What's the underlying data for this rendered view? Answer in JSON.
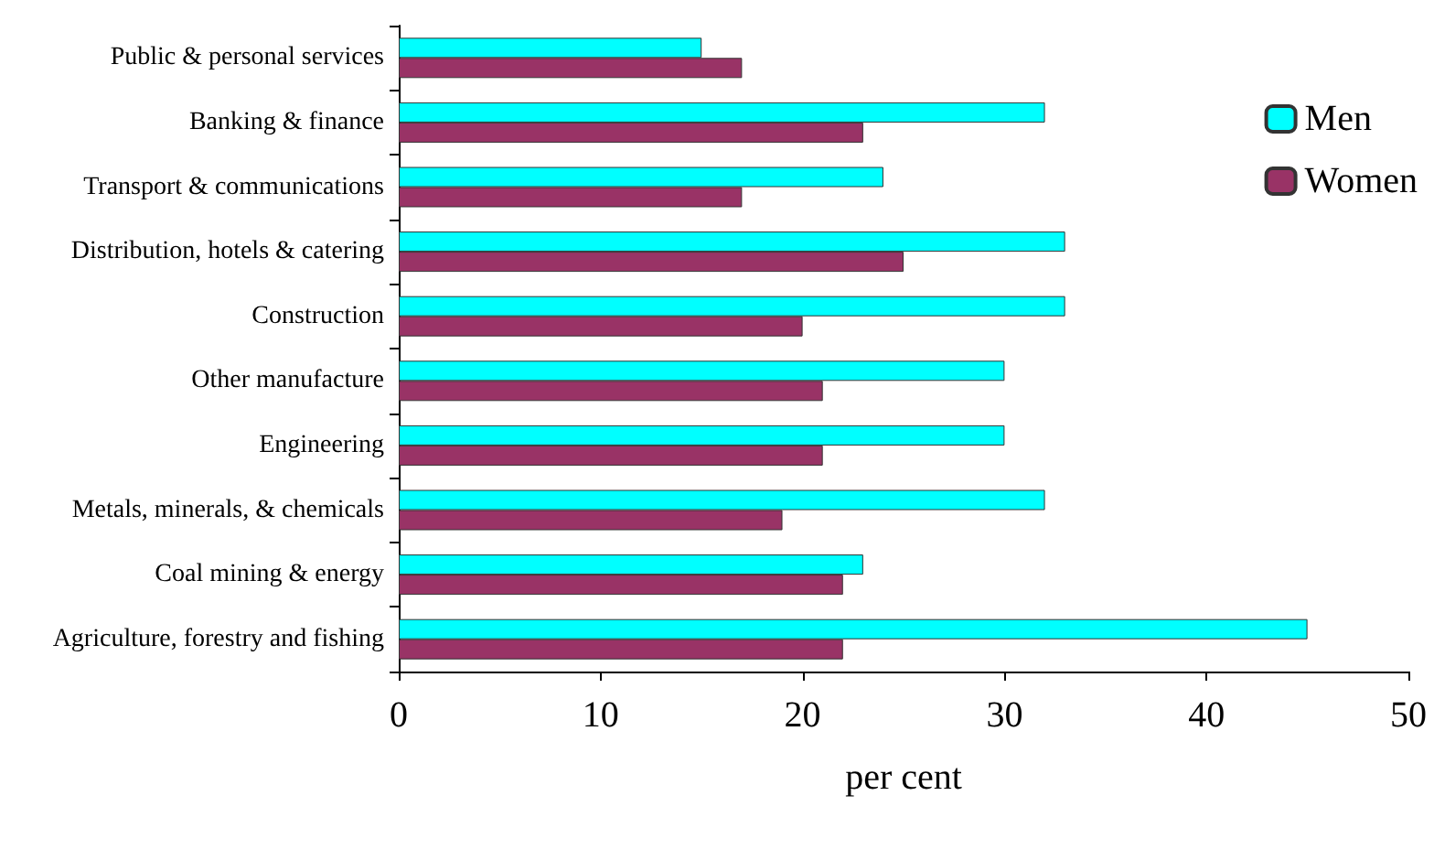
{
  "chart_data": {
    "type": "bar",
    "orientation": "horizontal",
    "xlabel": "per cent",
    "categories": [
      "Public & personal services",
      "Banking & finance",
      "Transport & communications",
      "Distribution, hotels & catering",
      "Construction",
      "Other manufacture",
      "Engineering",
      "Metals, minerals, & chemicals",
      "Coal mining & energy",
      "Agriculture, forestry and fishing"
    ],
    "series": [
      {
        "name": "Men",
        "color": "#00ffff",
        "values": [
          15,
          32,
          24,
          33,
          33,
          30,
          30,
          32,
          23,
          45
        ]
      },
      {
        "name": "Women",
        "color": "#993366",
        "values": [
          17,
          23,
          17,
          25,
          20,
          21,
          21,
          19,
          22,
          22
        ]
      }
    ],
    "xlim": [
      0,
      50
    ],
    "xticks": [
      0,
      10,
      20,
      30,
      40,
      50
    ],
    "grid": false,
    "legend": "right"
  }
}
